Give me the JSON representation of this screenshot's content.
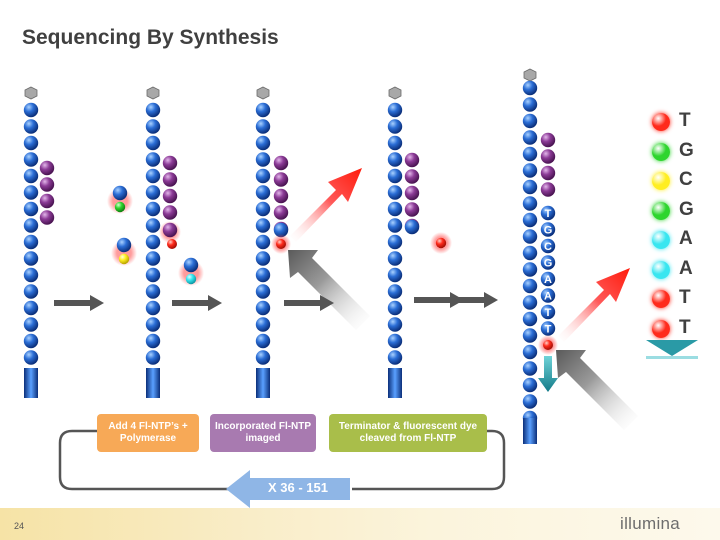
{
  "title": "Sequencing By Synthesis",
  "steps": [
    {
      "label": "Add 4 Fl-NTP’s + Polymerase",
      "color": "#f7a957"
    },
    {
      "label": "Incorporated Fl-NTP imaged",
      "color": "#a87ab0"
    },
    {
      "label": "Terminator & fluorescent dye cleaved from Fl-NTP",
      "color": "#a9be4a"
    }
  ],
  "cycle_label": "X 36 - 151",
  "strand_bases": [
    "T",
    "G",
    "C",
    "G",
    "A",
    "A",
    "T",
    "T"
  ],
  "legend": [
    {
      "letter": "T",
      "color": "#ff2b1c"
    },
    {
      "letter": "G",
      "color": "#2ed52e"
    },
    {
      "letter": "C",
      "color": "#ffee22"
    },
    {
      "letter": "G",
      "color": "#2ed52e"
    },
    {
      "letter": "A",
      "color": "#38e6f0"
    },
    {
      "letter": "A",
      "color": "#38e6f0"
    },
    {
      "letter": "T",
      "color": "#ff2b1c"
    },
    {
      "letter": "T",
      "color": "#ff2b1c"
    }
  ],
  "colors": {
    "backbone_bead": "#1f5ec8",
    "template_bead": "#7b2f86",
    "arrow_gray": "#555555",
    "cycle_arrow": "#8fb6e6"
  },
  "page_number": "24",
  "logo": "illumina"
}
